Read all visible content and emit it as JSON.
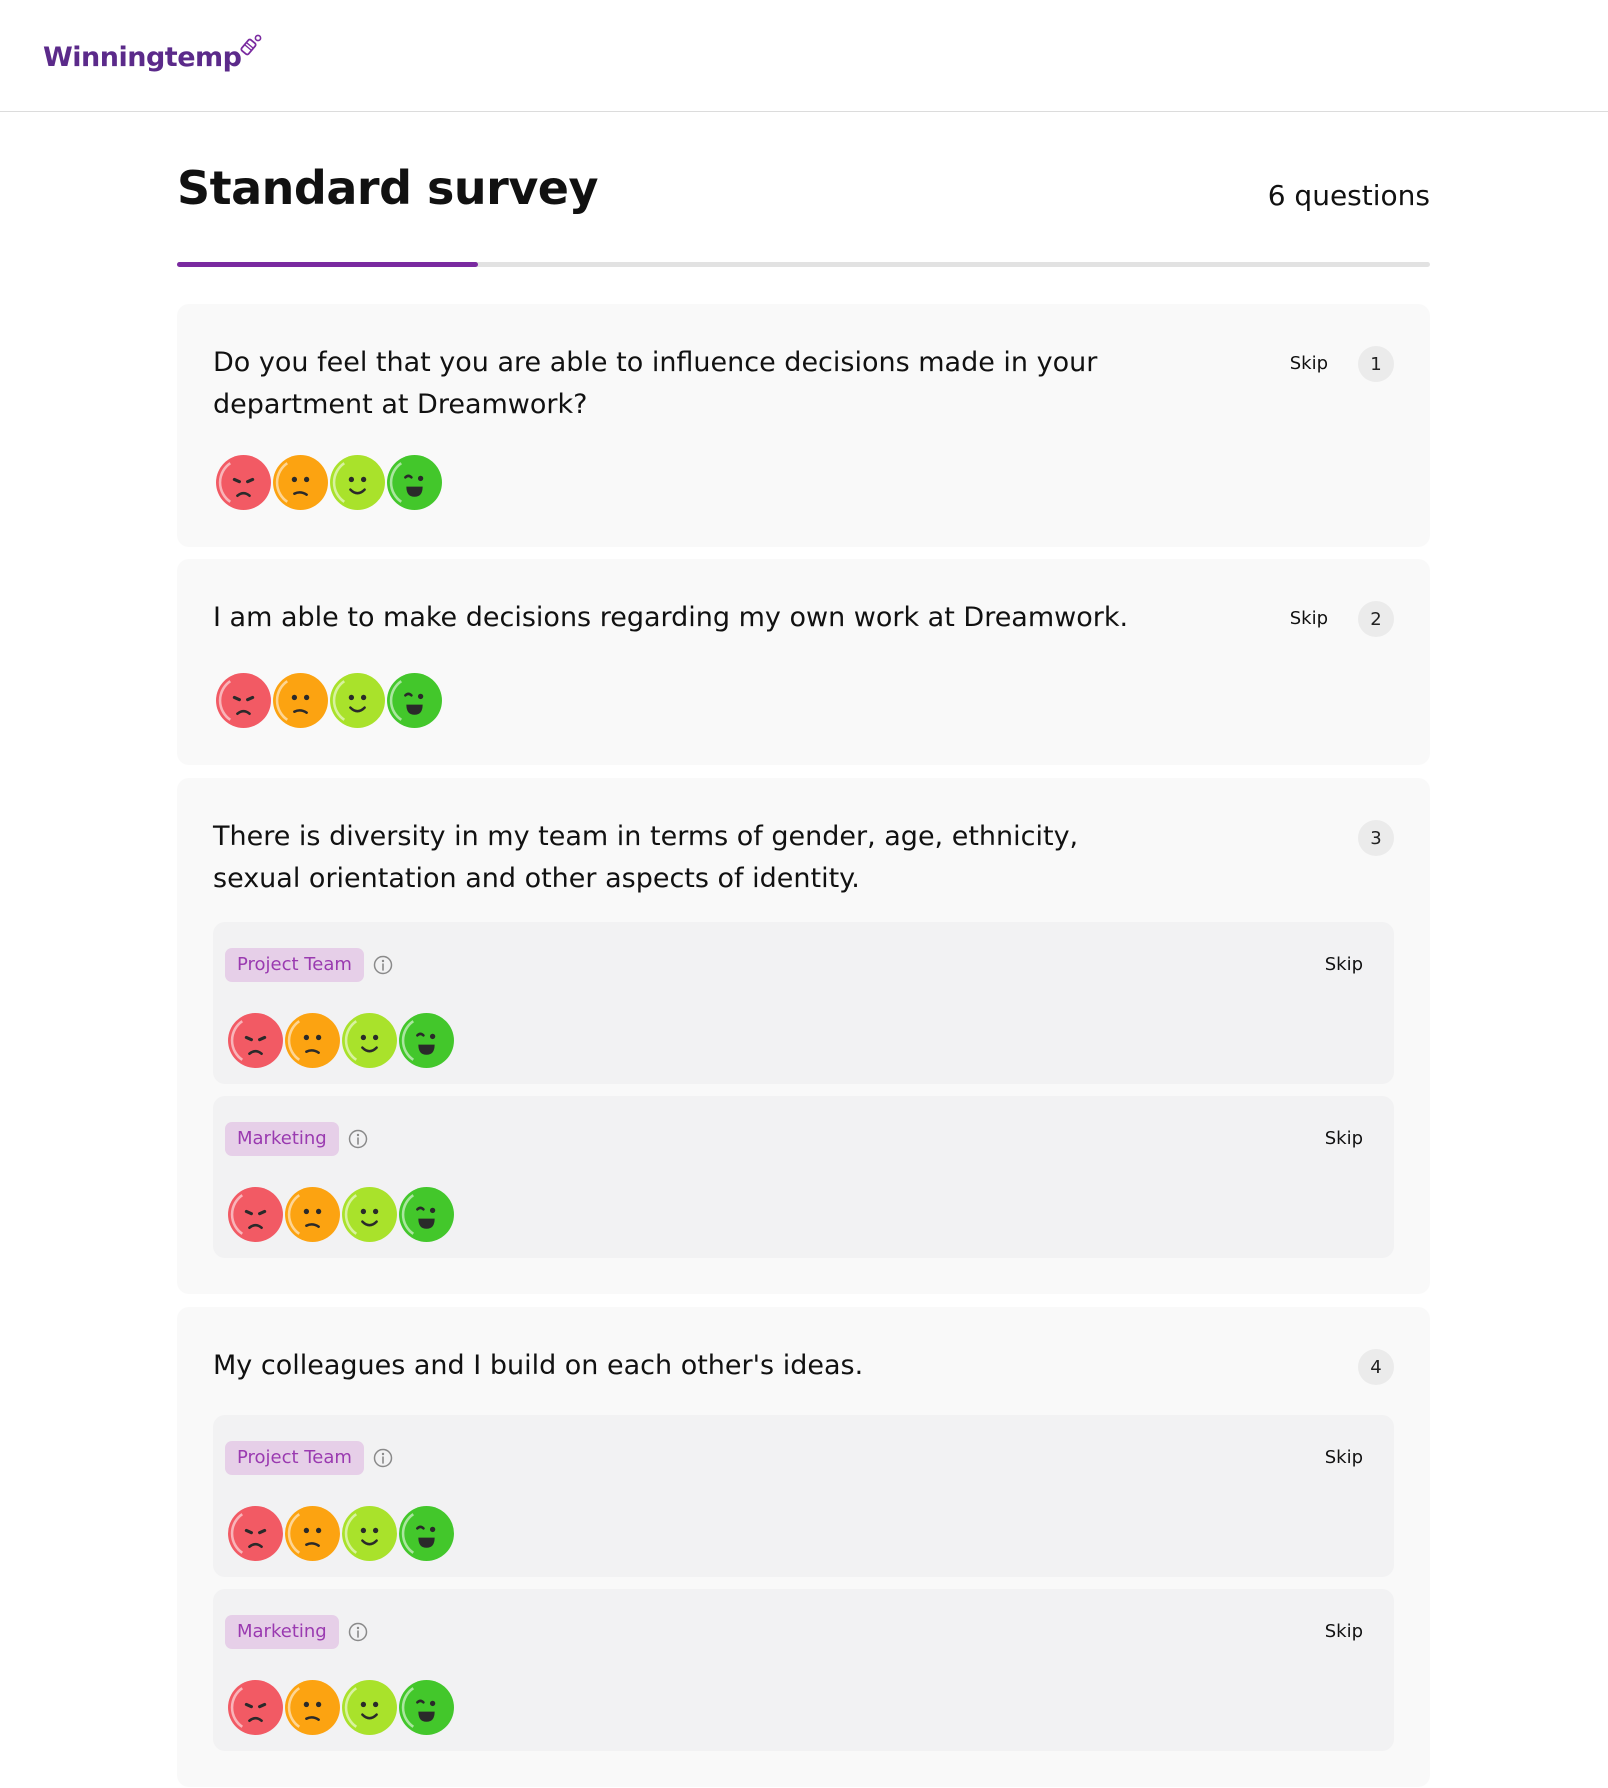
{
  "header": {
    "brand": "Winningtemp"
  },
  "survey": {
    "title": "Standard survey",
    "question_count": "6 questions",
    "progress": 0.24
  },
  "skip_label": "Skip",
  "colors": {
    "accent": "#7a2aa0",
    "face_very_negative": "#f25a64",
    "face_negative": "#fca311",
    "face_positive": "#a9e22b",
    "face_very_positive": "#43c72b"
  },
  "questions": [
    {
      "number": "1",
      "text": "Do you feel that you are able to influence decisions made in your department at Dreamwork?"
    },
    {
      "number": "2",
      "text": "I am able to make decisions regarding my own work at Dreamwork."
    },
    {
      "number": "3",
      "text": "There is diversity in my team in terms of gender, age, ethnicity, sexual orientation and other aspects of identity.",
      "groups": [
        {
          "label": "Project Team"
        },
        {
          "label": "Marketing"
        }
      ]
    },
    {
      "number": "4",
      "text": "My colleagues and I build on each other's ideas.",
      "groups": [
        {
          "label": "Project Team"
        },
        {
          "label": "Marketing"
        }
      ]
    }
  ]
}
